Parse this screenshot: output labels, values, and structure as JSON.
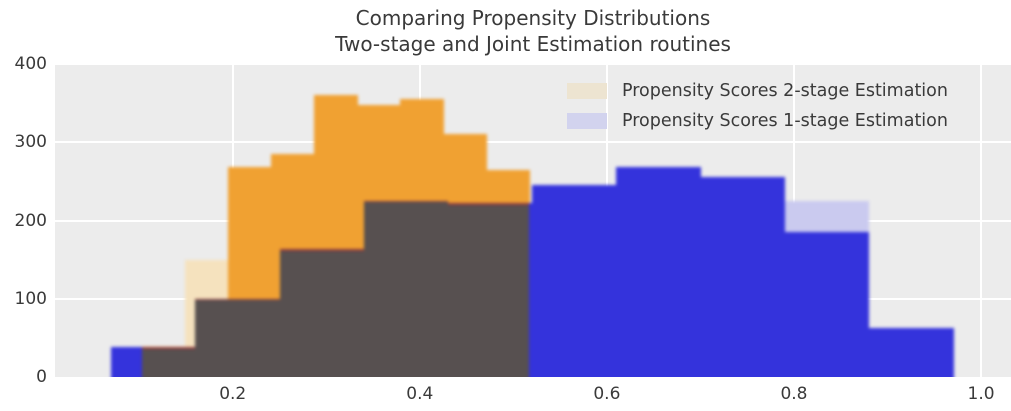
{
  "title": {
    "line1": "Comparing Propensity Distributions",
    "line2": "Two-stage and Joint Estimation routines"
  },
  "legend": {
    "items": [
      {
        "label": "Propensity Scores 2-stage Estimation",
        "swatch_color": "#EDE4D1"
      },
      {
        "label": "Propensity Scores 1-stage Estimation",
        "swatch_color": "#D2D3EE"
      }
    ]
  },
  "chart_data": {
    "type": "histogram",
    "title": "Comparing Propensity Distributions",
    "subtitle": "Two-stage and Joint Estimation routines",
    "xlabel": "",
    "ylabel": "",
    "xlim": [
      0.01,
      1.032
    ],
    "ylim": [
      0,
      400
    ],
    "x_ticks": [
      "0.2",
      "0.4",
      "0.6",
      "0.8",
      "1.0"
    ],
    "x_tick_values": [
      0.2,
      0.4,
      0.6,
      0.8,
      1.0
    ],
    "y_ticks": [
      "0",
      "100",
      "200",
      "300",
      "400"
    ],
    "y_tick_values": [
      0,
      100,
      200,
      300,
      400
    ],
    "grid": true,
    "background": "#ECECEC",
    "gridline_color": "#FFFFFF",
    "legend_position": "upper right",
    "overlap_color": "#575050",
    "overlap_edge_color": "#93383B",
    "series": [
      {
        "name": "Propensity Scores 2-stage Estimation",
        "color": "#F0A132",
        "pale_color": "#F5E2BE",
        "bin_start": 0.103,
        "bin_width": 0.046,
        "values": [
          40,
          150,
          268,
          285,
          360,
          348,
          355,
          310,
          265
        ],
        "pale_bins": [
          0,
          1
        ]
      },
      {
        "name": "Propensity Scores 1-stage Estimation",
        "color": "#3433DC",
        "pale_color": "#CACAEF",
        "bin_start": 0.07,
        "bin_width": 0.09,
        "values": [
          38,
          100,
          163,
          225,
          222,
          245,
          268,
          255,
          225,
          62
        ],
        "caps": [
          {
            "bin": 8,
            "solid_to": 185
          }
        ]
      }
    ]
  }
}
